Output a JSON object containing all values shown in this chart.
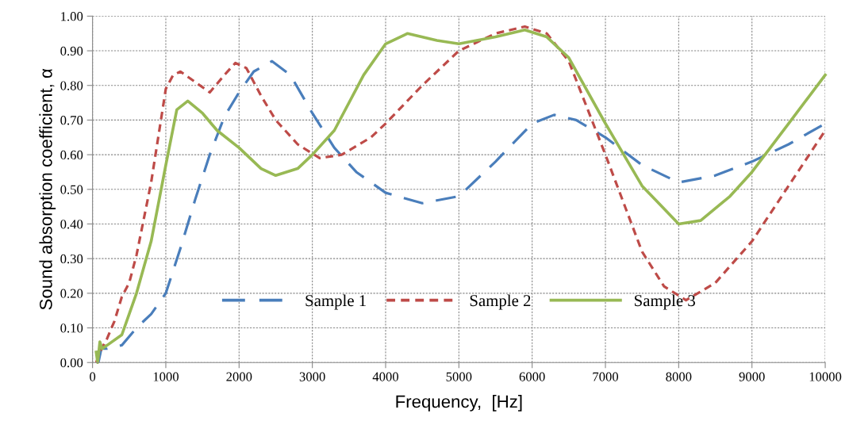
{
  "chart_data": {
    "type": "line",
    "xlabel": "Frequency,  [Hz]",
    "ylabel": "Sound absorption coefficient, α",
    "xlim": [
      0,
      10000
    ],
    "xticks": [
      0,
      1000,
      2000,
      3000,
      4000,
      5000,
      6000,
      7000,
      8000,
      9000,
      10000
    ],
    "ylim": [
      0,
      1
    ],
    "yticks": [
      {
        "value": 0,
        "label": "0.00"
      },
      {
        "value": 0.1,
        "label": "0.10"
      },
      {
        "value": 0.2,
        "label": "0.20"
      },
      {
        "value": 0.3,
        "label": "0.30"
      },
      {
        "value": 0.4,
        "label": "0.40"
      },
      {
        "value": 0.5,
        "label": "0.50"
      },
      {
        "value": 0.6,
        "label": "0.60"
      },
      {
        "value": 0.7,
        "label": "0.70"
      },
      {
        "value": 0.8,
        "label": "0.80"
      },
      {
        "value": 0.9,
        "label": "0.90"
      },
      {
        "value": 1,
        "label": "1.00"
      }
    ],
    "grid": true,
    "legend": "bottom",
    "marker": "none",
    "series": [
      {
        "name": "Sample 1",
        "color": "#4a7ebb",
        "line_style": "dashed",
        "x": [
          80,
          120,
          200,
          400,
          600,
          800,
          1000,
          1200,
          1400,
          1600,
          1800,
          2000,
          2200,
          2450,
          2700,
          3000,
          3300,
          3600,
          4000,
          4500,
          5000,
          5500,
          6000,
          6300,
          6600,
          7000,
          7500,
          8000,
          8500,
          9000,
          9500,
          10000
        ],
        "values": [
          0.0,
          0.04,
          0.04,
          0.05,
          0.1,
          0.14,
          0.2,
          0.33,
          0.47,
          0.6,
          0.71,
          0.78,
          0.84,
          0.87,
          0.83,
          0.72,
          0.62,
          0.55,
          0.49,
          0.46,
          0.48,
          0.58,
          0.69,
          0.715,
          0.7,
          0.65,
          0.57,
          0.52,
          0.54,
          0.58,
          0.63,
          0.69
        ]
      },
      {
        "name": "Sample 2",
        "color": "#be4b48",
        "line_style": "dotted",
        "x": [
          50,
          100,
          200,
          300,
          400,
          500,
          600,
          800,
          1000,
          1100,
          1200,
          1400,
          1600,
          1800,
          1950,
          2100,
          2300,
          2500,
          2800,
          3100,
          3400,
          3800,
          4000,
          4500,
          5000,
          5500,
          5900,
          6200,
          6500,
          7000,
          7500,
          7800,
          8100,
          8500,
          9000,
          9500,
          10000
        ],
        "values": [
          0.0,
          0.03,
          0.07,
          0.12,
          0.19,
          0.23,
          0.31,
          0.52,
          0.79,
          0.83,
          0.84,
          0.81,
          0.78,
          0.83,
          0.865,
          0.85,
          0.77,
          0.7,
          0.63,
          0.59,
          0.6,
          0.65,
          0.69,
          0.8,
          0.9,
          0.95,
          0.97,
          0.95,
          0.87,
          0.6,
          0.32,
          0.22,
          0.18,
          0.23,
          0.35,
          0.51,
          0.67
        ]
      },
      {
        "name": "Sample 3",
        "color": "#98b954",
        "line_style": "solid",
        "x": [
          50,
          70,
          100,
          130,
          200,
          400,
          500,
          600,
          800,
          1000,
          1150,
          1300,
          1500,
          1700,
          2000,
          2300,
          2500,
          2800,
          3000,
          3300,
          3700,
          4000,
          4300,
          4700,
          5000,
          5500,
          5900,
          6200,
          6500,
          7000,
          7500,
          8000,
          8300,
          8700,
          9000,
          9500,
          10000
        ],
        "values": [
          0.03,
          0.0,
          0.06,
          0.04,
          0.05,
          0.08,
          0.14,
          0.2,
          0.35,
          0.57,
          0.73,
          0.755,
          0.72,
          0.67,
          0.62,
          0.56,
          0.54,
          0.56,
          0.6,
          0.67,
          0.83,
          0.92,
          0.95,
          0.93,
          0.92,
          0.94,
          0.96,
          0.94,
          0.88,
          0.69,
          0.51,
          0.4,
          0.41,
          0.48,
          0.55,
          0.69,
          0.83
        ]
      }
    ]
  }
}
